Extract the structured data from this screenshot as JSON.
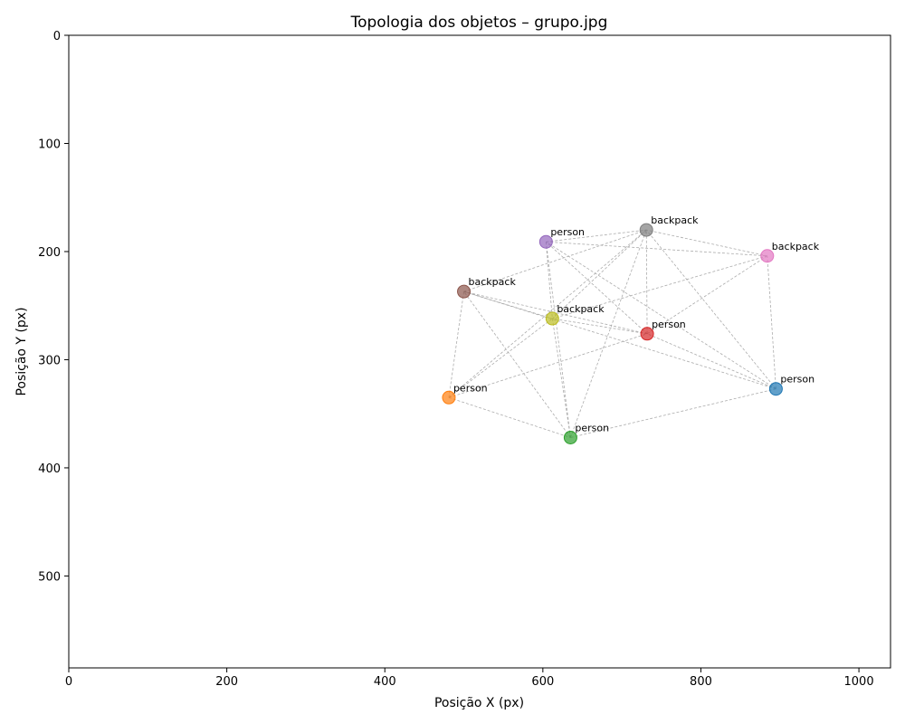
{
  "chart_data": {
    "type": "scatter",
    "title": "Topologia dos objetos – grupo.jpg",
    "xlabel": "Posição X (px)",
    "ylabel": "Posição Y (px)",
    "xlim": [
      0,
      1040
    ],
    "ylim": [
      585,
      0
    ],
    "y_inverted": true,
    "grid": false,
    "x_ticks": [
      0,
      200,
      400,
      600,
      800,
      1000
    ],
    "y_ticks": [
      0,
      100,
      200,
      300,
      400,
      500
    ],
    "points": [
      {
        "label": "person",
        "x": 895,
        "y": 327,
        "color": "#1f77b4"
      },
      {
        "label": "person",
        "x": 481,
        "y": 335,
        "color": "#ff7f0e"
      },
      {
        "label": "person",
        "x": 635,
        "y": 372,
        "color": "#2ca02c"
      },
      {
        "label": "person",
        "x": 732,
        "y": 276,
        "color": "#d62728"
      },
      {
        "label": "person",
        "x": 604,
        "y": 191,
        "color": "#9467bd"
      },
      {
        "label": "backpack",
        "x": 500,
        "y": 237,
        "color": "#8c564b"
      },
      {
        "label": "backpack",
        "x": 884,
        "y": 204,
        "color": "#e377c2"
      },
      {
        "label": "backpack",
        "x": 731,
        "y": 180,
        "color": "#7f7f7f"
      },
      {
        "label": "backpack",
        "x": 612,
        "y": 262,
        "color": "#bcbd22"
      }
    ],
    "edges": [
      [
        0,
        2
      ],
      [
        0,
        3
      ],
      [
        0,
        4
      ],
      [
        0,
        5
      ],
      [
        0,
        6
      ],
      [
        0,
        7
      ],
      [
        1,
        2
      ],
      [
        1,
        3
      ],
      [
        1,
        5
      ],
      [
        1,
        7
      ],
      [
        1,
        8
      ],
      [
        2,
        4
      ],
      [
        2,
        5
      ],
      [
        2,
        7
      ],
      [
        2,
        8
      ],
      [
        3,
        4
      ],
      [
        3,
        5
      ],
      [
        3,
        6
      ],
      [
        3,
        7
      ],
      [
        3,
        8
      ],
      [
        4,
        6
      ],
      [
        4,
        7
      ],
      [
        4,
        8
      ],
      [
        5,
        7
      ],
      [
        5,
        8
      ],
      [
        6,
        8
      ],
      [
        6,
        7
      ],
      [
        7,
        8
      ]
    ]
  }
}
